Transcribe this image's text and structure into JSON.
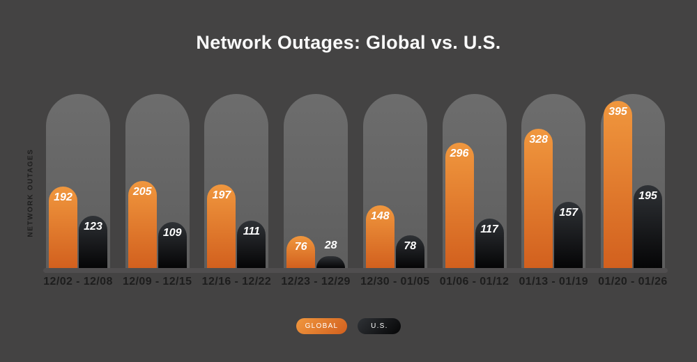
{
  "title": "Network Outages: Global vs. U.S.",
  "y_axis_label": "NETWORK OUTAGES",
  "legend": [
    {
      "id": "global",
      "label": "GLOBAL"
    },
    {
      "id": "us",
      "label": "U.S."
    }
  ],
  "colors": {
    "background": "#444343",
    "title": "#fafafa",
    "pill_top": "#6d6d6d",
    "pill_bottom": "#5e5e5e",
    "global_top": "#f0973e",
    "global_bottom": "#d2601e",
    "us_top": "#2f3236",
    "us_bottom": "#050506",
    "axis": "#504e4f",
    "x_label": "#1d1d1d",
    "value_label": "#ffffff"
  },
  "chart_data": {
    "type": "bar",
    "title": "Network Outages: Global vs. U.S.",
    "xlabel": "",
    "ylabel": "NETWORK OUTAGES",
    "categories": [
      "12/02 - 12/08",
      "12/09 - 12/15",
      "12/16 - 12/22",
      "12/23 - 12/29",
      "12/30 - 01/05",
      "01/06 - 01/12",
      "01/13 - 01/19",
      "01/20 - 01/26"
    ],
    "series": [
      {
        "name": "GLOBAL",
        "color": "#e8812e",
        "values": [
          192,
          205,
          197,
          76,
          148,
          296,
          328,
          395
        ]
      },
      {
        "name": "U.S.",
        "color": "#121417",
        "values": [
          123,
          109,
          111,
          28,
          78,
          117,
          157,
          195
        ]
      }
    ],
    "ylim": [
      0,
      411
    ],
    "grid": false,
    "legend_position": "bottom",
    "value_labels": true
  }
}
